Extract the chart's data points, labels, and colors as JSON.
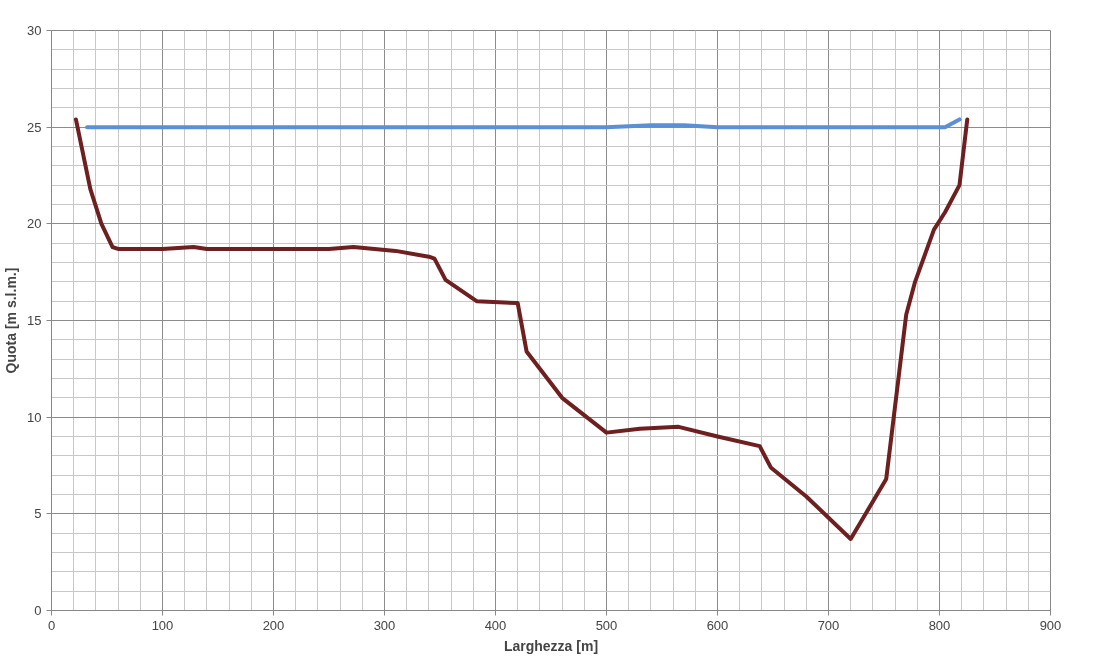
{
  "chart_data": {
    "type": "line",
    "xlabel": "Larghezza [m]",
    "ylabel": "Quota [m s.l.m.]",
    "xlim": [
      0,
      900
    ],
    "ylim": [
      0,
      30
    ],
    "xticks": [
      0,
      100,
      200,
      300,
      400,
      500,
      600,
      700,
      800,
      900
    ],
    "yticks": [
      0,
      5,
      10,
      15,
      20,
      25,
      30
    ],
    "grid": true,
    "line_style": "solid",
    "marker": "none",
    "series": [
      {
        "color": "#5b8fd6",
        "x": [
          32,
          500,
          540,
          570,
          600,
          805,
          818
        ],
        "values": [
          25,
          25,
          25.1,
          25.1,
          25,
          25,
          25.4
        ]
      },
      {
        "color": "#6e1f1f",
        "x": [
          22,
          35,
          45,
          55,
          60,
          100,
          128,
          140,
          250,
          272,
          310,
          340,
          345,
          355,
          383,
          420,
          428,
          460,
          500,
          530,
          565,
          600,
          638,
          648,
          680,
          720,
          752,
          770,
          778,
          795,
          805,
          818,
          825
        ],
        "values": [
          25.4,
          21.8,
          20,
          18.8,
          18.7,
          18.7,
          18.8,
          18.7,
          18.7,
          18.8,
          18.6,
          18.3,
          18.2,
          17.1,
          16,
          15.9,
          13.4,
          11,
          9.2,
          9.4,
          9.5,
          9,
          8.5,
          7.4,
          5.9,
          3.7,
          6.8,
          15.3,
          17,
          19.7,
          20.6,
          22,
          25.4
        ]
      }
    ]
  }
}
